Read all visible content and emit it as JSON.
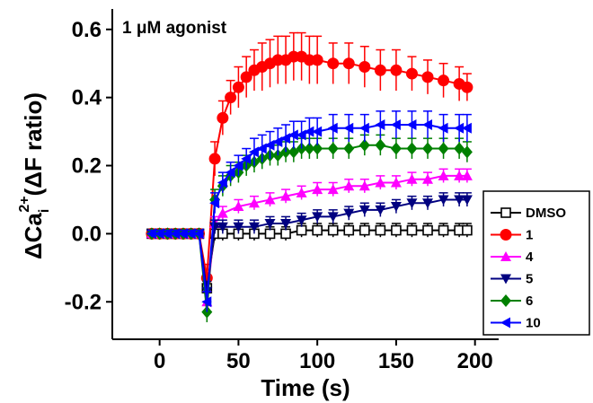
{
  "chart_data": {
    "type": "line",
    "annotation": "1 μM agonist",
    "xlabel": "Time (s)",
    "ylabel_main": "ΔCa",
    "ylabel_sub": "i",
    "ylabel_sup": "2+",
    "ylabel_rest": "(ΔF ratio)",
    "xlim": [
      -30,
      215
    ],
    "ylim": [
      -0.31,
      0.66
    ],
    "xticks": [
      0,
      50,
      100,
      150,
      200
    ],
    "xtick_labels": [
      "0",
      "50",
      "100",
      "150",
      "200"
    ],
    "yticks": [
      -0.2,
      0.0,
      0.2,
      0.4,
      0.6
    ],
    "ytick_labels": [
      "-0.2",
      "0.0",
      "0.2",
      "0.4",
      "0.6"
    ],
    "legend_position": "right",
    "series": [
      {
        "name": "DMSO",
        "color": "#000000",
        "marker": "square-open",
        "x": [
          -5,
          0,
          5,
          10,
          15,
          20,
          25,
          30,
          35,
          40,
          50,
          60,
          70,
          80,
          90,
          100,
          110,
          120,
          130,
          140,
          150,
          160,
          170,
          180,
          190,
          195
        ],
        "y": [
          0.0,
          0.0,
          0.0,
          0.0,
          0.0,
          0.0,
          0.0,
          -0.16,
          0.0,
          0.0,
          0.0,
          0.0,
          0.0,
          0.0,
          0.01,
          0.01,
          0.01,
          0.01,
          0.01,
          0.01,
          0.01,
          0.01,
          0.01,
          0.01,
          0.01,
          0.01
        ],
        "err": [
          0.01,
          0.01,
          0.01,
          0.01,
          0.01,
          0.01,
          0.01,
          0.03,
          0.02,
          0.02,
          0.02,
          0.02,
          0.02,
          0.02,
          0.02,
          0.02,
          0.02,
          0.02,
          0.02,
          0.02,
          0.02,
          0.02,
          0.02,
          0.02,
          0.02,
          0.02
        ]
      },
      {
        "name": "1",
        "color": "#ff0000",
        "marker": "circle",
        "x": [
          -5,
          0,
          5,
          10,
          15,
          20,
          25,
          30,
          35,
          40,
          45,
          50,
          55,
          60,
          65,
          70,
          75,
          80,
          85,
          90,
          95,
          100,
          110,
          120,
          130,
          140,
          150,
          160,
          170,
          180,
          190,
          195
        ],
        "y": [
          0.0,
          0.0,
          0.0,
          0.0,
          0.0,
          0.0,
          0.0,
          -0.13,
          0.22,
          0.34,
          0.4,
          0.43,
          0.46,
          0.48,
          0.49,
          0.5,
          0.51,
          0.51,
          0.52,
          0.52,
          0.51,
          0.51,
          0.5,
          0.5,
          0.49,
          0.48,
          0.48,
          0.47,
          0.46,
          0.45,
          0.44,
          0.43
        ],
        "err": [
          0.01,
          0.01,
          0.01,
          0.01,
          0.01,
          0.01,
          0.01,
          0.04,
          0.05,
          0.05,
          0.05,
          0.06,
          0.06,
          0.06,
          0.07,
          0.07,
          0.07,
          0.07,
          0.07,
          0.07,
          0.07,
          0.07,
          0.06,
          0.06,
          0.06,
          0.06,
          0.06,
          0.05,
          0.05,
          0.05,
          0.05,
          0.04
        ]
      },
      {
        "name": "4",
        "color": "#ff00ff",
        "marker": "triangle-up",
        "x": [
          -5,
          0,
          5,
          10,
          15,
          20,
          25,
          30,
          35,
          40,
          50,
          60,
          70,
          80,
          90,
          100,
          110,
          120,
          130,
          140,
          150,
          160,
          170,
          180,
          190,
          195
        ],
        "y": [
          0.0,
          0.0,
          0.0,
          0.0,
          0.0,
          0.0,
          0.0,
          -0.2,
          0.03,
          0.06,
          0.08,
          0.09,
          0.1,
          0.11,
          0.12,
          0.13,
          0.13,
          0.14,
          0.14,
          0.15,
          0.15,
          0.16,
          0.16,
          0.17,
          0.17,
          0.17
        ],
        "err": [
          0.01,
          0.01,
          0.01,
          0.01,
          0.01,
          0.01,
          0.01,
          0.03,
          0.02,
          0.02,
          0.02,
          0.02,
          0.02,
          0.02,
          0.02,
          0.02,
          0.02,
          0.02,
          0.02,
          0.02,
          0.02,
          0.02,
          0.02,
          0.02,
          0.02,
          0.02
        ]
      },
      {
        "name": "5",
        "color": "#000080",
        "marker": "triangle-down",
        "x": [
          -5,
          0,
          5,
          10,
          15,
          20,
          25,
          30,
          35,
          40,
          50,
          60,
          70,
          80,
          90,
          100,
          110,
          120,
          130,
          140,
          150,
          160,
          170,
          180,
          190,
          195
        ],
        "y": [
          0.0,
          0.0,
          0.0,
          0.0,
          0.0,
          0.0,
          0.0,
          -0.17,
          0.02,
          0.02,
          0.02,
          0.02,
          0.03,
          0.03,
          0.04,
          0.05,
          0.05,
          0.06,
          0.07,
          0.07,
          0.08,
          0.09,
          0.09,
          0.1,
          0.1,
          0.1
        ],
        "err": [
          0.01,
          0.01,
          0.01,
          0.01,
          0.01,
          0.01,
          0.01,
          0.03,
          0.02,
          0.02,
          0.02,
          0.02,
          0.02,
          0.02,
          0.02,
          0.02,
          0.02,
          0.02,
          0.02,
          0.02,
          0.02,
          0.02,
          0.02,
          0.02,
          0.02,
          0.02
        ]
      },
      {
        "name": "6",
        "color": "#008000",
        "marker": "diamond",
        "x": [
          -5,
          0,
          5,
          10,
          15,
          20,
          25,
          30,
          35,
          40,
          45,
          50,
          55,
          60,
          65,
          70,
          75,
          80,
          85,
          90,
          95,
          100,
          110,
          120,
          130,
          140,
          150,
          160,
          170,
          180,
          190,
          195
        ],
        "y": [
          0.0,
          0.0,
          0.0,
          0.0,
          0.0,
          0.0,
          0.0,
          -0.23,
          0.1,
          0.14,
          0.17,
          0.18,
          0.2,
          0.21,
          0.22,
          0.23,
          0.23,
          0.24,
          0.24,
          0.25,
          0.25,
          0.25,
          0.25,
          0.25,
          0.26,
          0.26,
          0.25,
          0.25,
          0.25,
          0.25,
          0.25,
          0.24
        ],
        "err": [
          0.01,
          0.01,
          0.01,
          0.01,
          0.01,
          0.01,
          0.01,
          0.03,
          0.03,
          0.03,
          0.03,
          0.03,
          0.03,
          0.03,
          0.03,
          0.03,
          0.03,
          0.03,
          0.03,
          0.03,
          0.03,
          0.03,
          0.03,
          0.03,
          0.03,
          0.03,
          0.03,
          0.03,
          0.03,
          0.03,
          0.03,
          0.03
        ]
      },
      {
        "name": "10",
        "color": "#0000ff",
        "marker": "triangle-left",
        "x": [
          -5,
          0,
          5,
          10,
          15,
          20,
          25,
          30,
          35,
          40,
          45,
          50,
          55,
          60,
          65,
          70,
          75,
          80,
          85,
          90,
          95,
          100,
          110,
          120,
          130,
          140,
          150,
          160,
          170,
          180,
          190,
          195
        ],
        "y": [
          0.0,
          0.0,
          0.0,
          0.0,
          0.0,
          0.0,
          0.0,
          -0.2,
          0.09,
          0.15,
          0.18,
          0.2,
          0.22,
          0.24,
          0.25,
          0.26,
          0.27,
          0.28,
          0.29,
          0.29,
          0.3,
          0.3,
          0.31,
          0.31,
          0.31,
          0.32,
          0.32,
          0.32,
          0.32,
          0.31,
          0.31,
          0.31
        ],
        "err": [
          0.01,
          0.01,
          0.01,
          0.01,
          0.01,
          0.01,
          0.01,
          0.03,
          0.03,
          0.03,
          0.03,
          0.03,
          0.03,
          0.04,
          0.04,
          0.04,
          0.04,
          0.04,
          0.04,
          0.04,
          0.04,
          0.04,
          0.04,
          0.04,
          0.04,
          0.04,
          0.04,
          0.04,
          0.04,
          0.04,
          0.04,
          0.04
        ]
      }
    ]
  }
}
